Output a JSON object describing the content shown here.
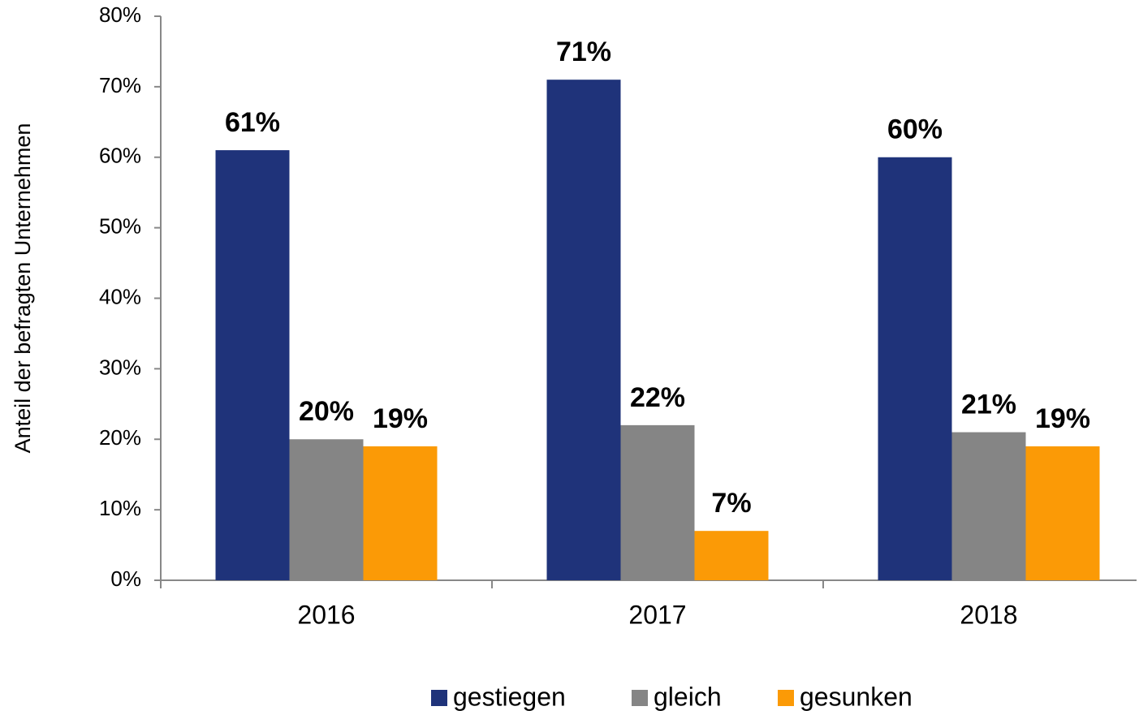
{
  "chart_data": {
    "type": "bar",
    "y_label": "Anteil der befragten Unternehmen",
    "categories": [
      "2016",
      "2017",
      "2018"
    ],
    "series": [
      {
        "name": "gestiegen",
        "color": "#1f337a",
        "values": [
          61,
          71,
          60
        ],
        "value_labels": [
          "61%",
          "71%",
          "60%"
        ]
      },
      {
        "name": "gleich",
        "color": "#858585",
        "values": [
          20,
          22,
          21
        ],
        "value_labels": [
          "20%",
          "22%",
          "21%"
        ]
      },
      {
        "name": "gesunken",
        "color": "#fb9a06",
        "values": [
          19,
          7,
          19
        ],
        "value_labels": [
          "19%",
          "7%",
          "19%"
        ]
      }
    ],
    "ylim": [
      0,
      80
    ],
    "yticks": [
      {
        "value": 0,
        "label": "0%"
      },
      {
        "value": 10,
        "label": "10%"
      },
      {
        "value": 20,
        "label": "20%"
      },
      {
        "value": 30,
        "label": "30%"
      },
      {
        "value": 40,
        "label": "40%"
      },
      {
        "value": 50,
        "label": "50%"
      },
      {
        "value": 60,
        "label": "60%"
      },
      {
        "value": 70,
        "label": "70%"
      },
      {
        "value": 80,
        "label": "80%"
      }
    ],
    "legend": "bottom"
  }
}
